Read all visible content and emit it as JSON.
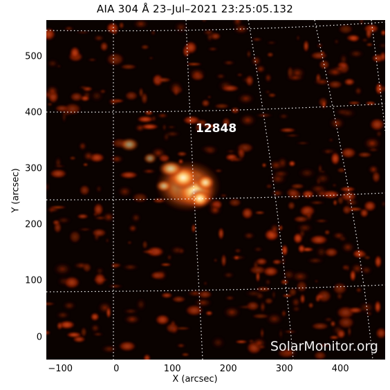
{
  "title": "AIA 304 Å 23–Jul–2021 23:25:05.132",
  "active_region": "12848",
  "watermark": "SolarMonitor.org",
  "axes": {
    "xlabel": "X (arcsec)",
    "ylabel": "Y (arcsec)",
    "xlim": [
      -125,
      480
    ],
    "ylim": [
      -40,
      565
    ],
    "xticks": [
      "−100",
      "0",
      "100",
      "200",
      "300",
      "400"
    ],
    "yticks": [
      "0",
      "100",
      "200",
      "300",
      "400",
      "500"
    ],
    "xtick_values": [
      -100,
      0,
      100,
      200,
      300,
      400
    ],
    "ytick_values": [
      0,
      100,
      200,
      300,
      400,
      500
    ]
  },
  "colors": {
    "background": "#0a0200",
    "emission_low": "#7a1400",
    "emission_mid": "#e85a10",
    "emission_high": "#fff2c0",
    "grid": "#ffffff"
  }
}
